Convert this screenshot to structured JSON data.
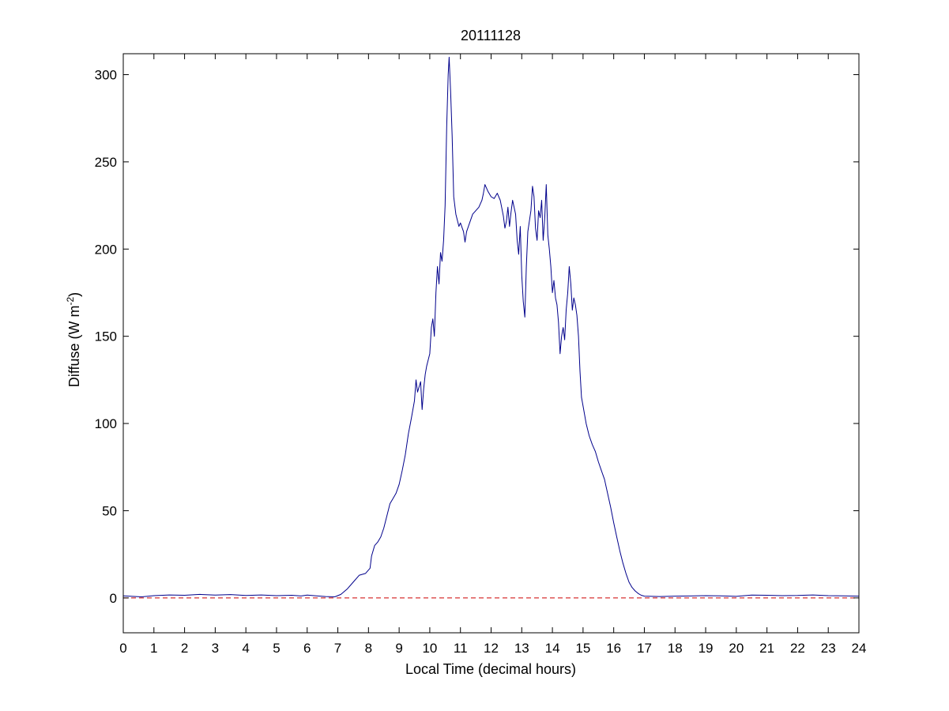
{
  "chart_data": {
    "type": "line",
    "title": "20111128",
    "xlabel": "Local Time (decimal hours)",
    "ylabel": {
      "main": "Diffuse (W m",
      "superscript": "-2",
      "close": ")"
    },
    "xlim": [
      0,
      24
    ],
    "ylim": [
      -20,
      312
    ],
    "xticks": [
      0,
      1,
      2,
      3,
      4,
      5,
      6,
      7,
      8,
      9,
      10,
      11,
      12,
      13,
      14,
      15,
      16,
      17,
      18,
      19,
      20,
      21,
      22,
      23,
      24
    ],
    "yticks": [
      0,
      50,
      100,
      150,
      200,
      250,
      300
    ],
    "grid": false,
    "legend": "none",
    "reference_line": {
      "y": 0,
      "color": "#cc0000",
      "style": "dashed"
    },
    "series": [
      {
        "color": "#00008b",
        "points": [
          [
            0.0,
            1.2
          ],
          [
            0.3,
            0.9
          ],
          [
            0.6,
            0.6
          ],
          [
            1.0,
            1.3
          ],
          [
            1.5,
            1.7
          ],
          [
            2.0,
            1.5
          ],
          [
            2.5,
            2.0
          ],
          [
            3.0,
            1.6
          ],
          [
            3.5,
            1.9
          ],
          [
            4.0,
            1.4
          ],
          [
            4.5,
            1.7
          ],
          [
            5.0,
            1.3
          ],
          [
            5.5,
            1.5
          ],
          [
            5.8,
            1.1
          ],
          [
            6.0,
            1.6
          ],
          [
            6.3,
            1.2
          ],
          [
            6.6,
            0.8
          ],
          [
            6.9,
            0.6
          ],
          [
            7.1,
            2
          ],
          [
            7.3,
            5
          ],
          [
            7.5,
            9
          ],
          [
            7.7,
            13
          ],
          [
            7.9,
            14
          ],
          [
            8.05,
            17
          ],
          [
            8.1,
            24
          ],
          [
            8.2,
            30
          ],
          [
            8.3,
            32
          ],
          [
            8.4,
            35
          ],
          [
            8.5,
            40
          ],
          [
            8.6,
            47
          ],
          [
            8.7,
            54
          ],
          [
            8.8,
            57
          ],
          [
            8.9,
            60
          ],
          [
            9.0,
            65
          ],
          [
            9.1,
            73
          ],
          [
            9.2,
            82
          ],
          [
            9.3,
            94
          ],
          [
            9.4,
            103
          ],
          [
            9.5,
            113
          ],
          [
            9.55,
            125
          ],
          [
            9.6,
            118
          ],
          [
            9.7,
            124
          ],
          [
            9.75,
            108
          ],
          [
            9.8,
            120
          ],
          [
            9.85,
            128
          ],
          [
            9.9,
            133
          ],
          [
            10.0,
            140
          ],
          [
            10.05,
            155
          ],
          [
            10.1,
            160
          ],
          [
            10.15,
            150
          ],
          [
            10.2,
            175
          ],
          [
            10.25,
            190
          ],
          [
            10.3,
            180
          ],
          [
            10.35,
            198
          ],
          [
            10.4,
            193
          ],
          [
            10.45,
            205
          ],
          [
            10.5,
            225
          ],
          [
            10.55,
            270
          ],
          [
            10.6,
            300
          ],
          [
            10.63,
            310
          ],
          [
            10.68,
            290
          ],
          [
            10.73,
            265
          ],
          [
            10.78,
            230
          ],
          [
            10.85,
            220
          ],
          [
            10.95,
            213
          ],
          [
            11.0,
            215
          ],
          [
            11.1,
            210
          ],
          [
            11.15,
            204
          ],
          [
            11.2,
            210
          ],
          [
            11.3,
            215
          ],
          [
            11.4,
            220
          ],
          [
            11.5,
            222
          ],
          [
            11.6,
            224
          ],
          [
            11.7,
            228
          ],
          [
            11.75,
            232
          ],
          [
            11.8,
            237
          ],
          [
            11.9,
            233
          ],
          [
            12.0,
            230
          ],
          [
            12.1,
            229
          ],
          [
            12.2,
            232
          ],
          [
            12.3,
            228
          ],
          [
            12.4,
            219
          ],
          [
            12.45,
            212
          ],
          [
            12.5,
            216
          ],
          [
            12.55,
            224
          ],
          [
            12.6,
            213
          ],
          [
            12.65,
            221
          ],
          [
            12.7,
            228
          ],
          [
            12.8,
            220
          ],
          [
            12.85,
            205
          ],
          [
            12.9,
            197
          ],
          [
            12.95,
            213
          ],
          [
            13.0,
            185
          ],
          [
            13.05,
            170
          ],
          [
            13.1,
            161
          ],
          [
            13.15,
            190
          ],
          [
            13.2,
            210
          ],
          [
            13.3,
            222
          ],
          [
            13.35,
            236
          ],
          [
            13.4,
            230
          ],
          [
            13.45,
            212
          ],
          [
            13.5,
            205
          ],
          [
            13.55,
            222
          ],
          [
            13.6,
            218
          ],
          [
            13.65,
            228
          ],
          [
            13.7,
            205
          ],
          [
            13.75,
            218
          ],
          [
            13.8,
            237
          ],
          [
            13.85,
            208
          ],
          [
            13.9,
            200
          ],
          [
            13.95,
            190
          ],
          [
            14.0,
            175
          ],
          [
            14.05,
            182
          ],
          [
            14.1,
            172
          ],
          [
            14.15,
            168
          ],
          [
            14.2,
            158
          ],
          [
            14.25,
            140
          ],
          [
            14.3,
            150
          ],
          [
            14.35,
            155
          ],
          [
            14.4,
            148
          ],
          [
            14.45,
            165
          ],
          [
            14.5,
            175
          ],
          [
            14.55,
            190
          ],
          [
            14.6,
            180
          ],
          [
            14.65,
            165
          ],
          [
            14.7,
            172
          ],
          [
            14.75,
            168
          ],
          [
            14.8,
            162
          ],
          [
            14.85,
            150
          ],
          [
            14.9,
            130
          ],
          [
            14.95,
            115
          ],
          [
            15.0,
            110
          ],
          [
            15.1,
            100
          ],
          [
            15.2,
            93
          ],
          [
            15.3,
            88
          ],
          [
            15.4,
            84
          ],
          [
            15.5,
            78
          ],
          [
            15.6,
            73
          ],
          [
            15.7,
            68
          ],
          [
            15.8,
            60
          ],
          [
            15.9,
            52
          ],
          [
            16.0,
            43
          ],
          [
            16.1,
            35
          ],
          [
            16.2,
            27
          ],
          [
            16.3,
            20
          ],
          [
            16.4,
            14
          ],
          [
            16.5,
            9
          ],
          [
            16.6,
            6
          ],
          [
            16.7,
            4
          ],
          [
            16.8,
            2.5
          ],
          [
            16.9,
            1.5
          ],
          [
            17.0,
            1.0
          ],
          [
            17.5,
            0.8
          ],
          [
            18.0,
            1.0
          ],
          [
            18.5,
            1.1
          ],
          [
            19.0,
            1.3
          ],
          [
            19.5,
            1.2
          ],
          [
            20.0,
            0.9
          ],
          [
            20.5,
            1.6
          ],
          [
            21.0,
            1.5
          ],
          [
            21.5,
            1.3
          ],
          [
            22.0,
            1.4
          ],
          [
            22.5,
            1.7
          ],
          [
            23.0,
            1.3
          ],
          [
            23.5,
            1.2
          ],
          [
            24.0,
            1.0
          ]
        ]
      }
    ]
  }
}
